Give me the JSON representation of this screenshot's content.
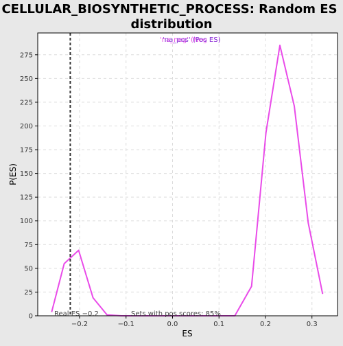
{
  "chart_data": {
    "type": "line",
    "title_lines": [
      "CELLULAR_BIOSYNTHETIC_PROCESS: Random ES",
      "distribution"
    ],
    "xlabel": "ES",
    "ylabel": "P(ES)",
    "xlim": [
      -0.29,
      0.355
    ],
    "ylim": [
      0,
      298
    ],
    "x_ticks": [
      -0.2,
      -0.1,
      0.0,
      0.1,
      0.2,
      0.3
    ],
    "x_tick_labels": [
      "−0.2",
      "−0.1",
      "0.0",
      "0.1",
      "0.2",
      "0.3"
    ],
    "y_ticks": [
      0,
      25,
      50,
      75,
      100,
      125,
      150,
      175,
      200,
      225,
      250,
      275
    ],
    "y_tick_labels": [
      "0",
      "25",
      "50",
      "75",
      "100",
      "125",
      "150",
      "175",
      "200",
      "225",
      "250",
      "275"
    ],
    "grid": true,
    "series": [
      {
        "name": "'na_pos' (Pos ES)",
        "color": "#8a3fd8",
        "x": [],
        "y": []
      },
      {
        "name": "'na_neg' (Neg ES)",
        "color": "#e94be9",
        "x": [
          -0.26,
          -0.233,
          -0.202,
          -0.171,
          -0.141,
          -0.11,
          -0.08,
          -0.049,
          -0.019,
          0.012,
          0.042,
          0.073,
          0.104,
          0.134,
          0.17,
          0.201,
          0.231,
          0.262,
          0.292,
          0.323
        ],
        "y": [
          4,
          55,
          69,
          19,
          1,
          0,
          0,
          0,
          0,
          0,
          0,
          0,
          0,
          0,
          31,
          193,
          285,
          221,
          98,
          23
        ]
      }
    ],
    "real_es": {
      "value": -0.22,
      "label": "Real ES −0.2"
    },
    "annotation": "Sets with pos scores: 85%"
  }
}
